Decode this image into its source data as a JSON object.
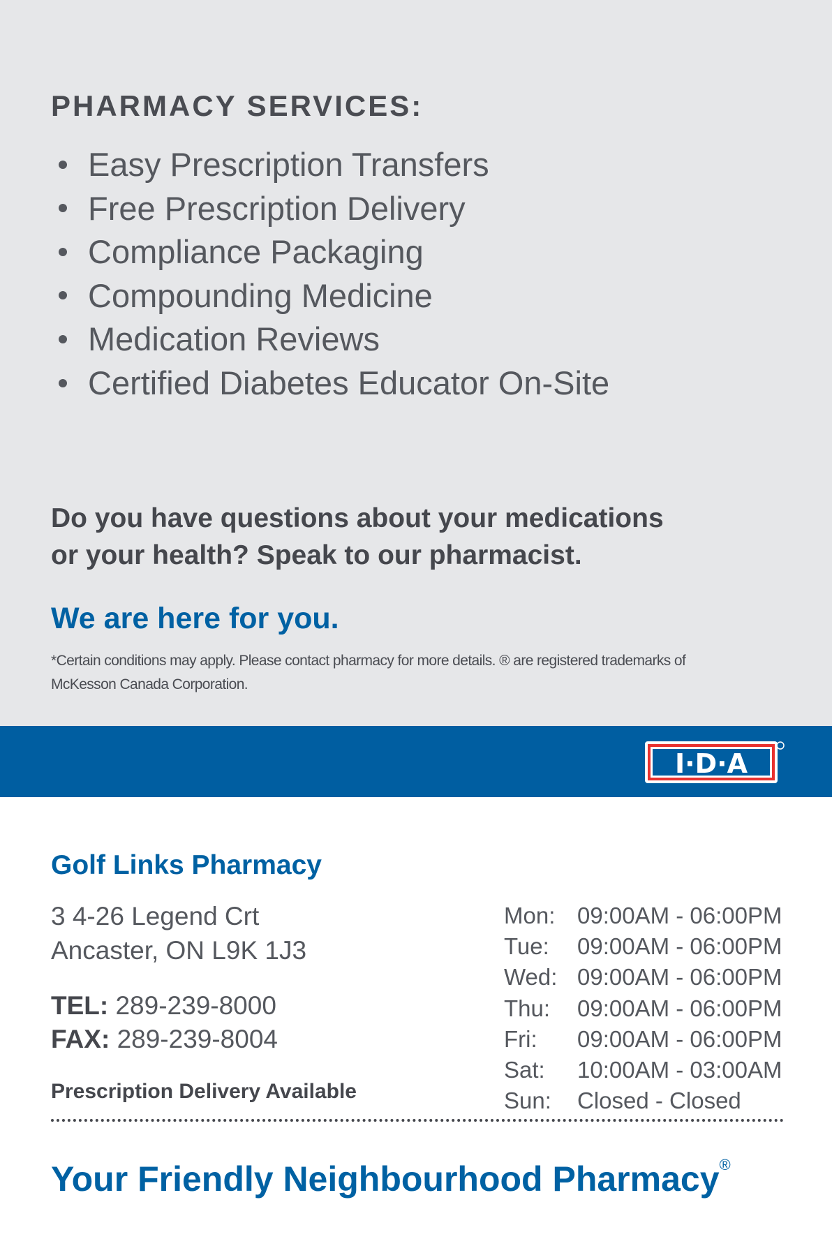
{
  "services": {
    "title": "PHARMACY SERVICES:",
    "items": [
      "Easy Prescription Transfers",
      "Free Prescription Delivery",
      "Compliance Packaging",
      "Compounding Medicine",
      "Medication Reviews",
      "Certified Diabetes Educator On-Site"
    ]
  },
  "question": {
    "line1": "Do you have questions about your medications",
    "line2": "or your health? Speak to our pharmacist."
  },
  "tagline_here": "We are here for you.",
  "disclaimer": {
    "line1": "*Certain conditions may apply. Please contact pharmacy for more details. ® are registered trademarks of",
    "line2": "McKesson Canada Corporation."
  },
  "logo": {
    "text": "I·D·A",
    "colors": {
      "band": "#005ea1",
      "red": "#e8312f"
    }
  },
  "store": {
    "name": "Golf Links Pharmacy",
    "address1": "3 4-26 Legend Crt",
    "address2": "Ancaster, ON L9K 1J3",
    "tel_label": "TEL:",
    "tel": "289-239-8000",
    "fax_label": "FAX:",
    "fax": "289-239-8004",
    "delivery": "Prescription Delivery Available"
  },
  "hours": [
    {
      "day": "Mon:",
      "time": "09:00AM - 06:00PM"
    },
    {
      "day": "Tue:",
      "time": "09:00AM - 06:00PM"
    },
    {
      "day": "Wed:",
      "time": "09:00AM - 06:00PM"
    },
    {
      "day": "Thu:",
      "time": "09:00AM - 06:00PM"
    },
    {
      "day": "Fri:",
      "time": "09:00AM - 06:00PM"
    },
    {
      "day": "Sat:",
      "time": "10:00AM - 03:00AM"
    },
    {
      "day": "Sun:",
      "time": "Closed - Closed"
    }
  ],
  "footer": {
    "tagline": "Your Friendly Neighbourhood Pharmacy",
    "mark": "®"
  }
}
